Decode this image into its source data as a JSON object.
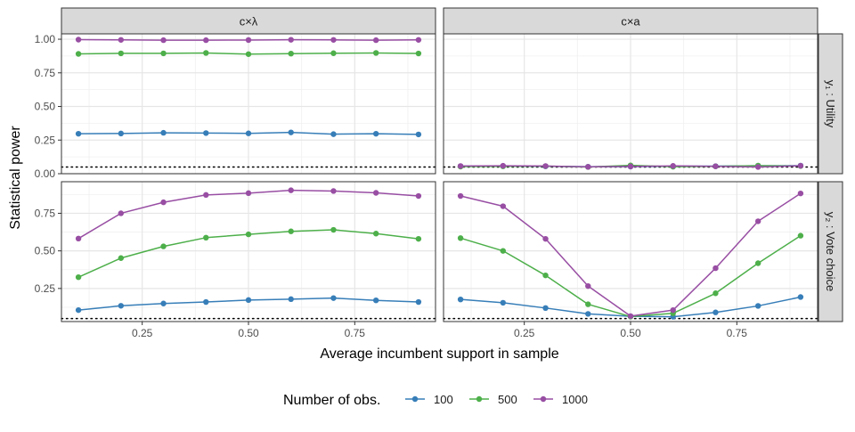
{
  "chart_data": {
    "type": "line",
    "xlabel": "Average incumbent support in sample",
    "ylabel": "Statistical power",
    "xlim": [
      0.06,
      0.94
    ],
    "x_ticks": [
      0.25,
      0.5,
      0.75
    ],
    "x_tick_labels": [
      "0.25",
      "0.50",
      "0.75"
    ],
    "x": [
      0.1,
      0.2,
      0.3,
      0.4,
      0.5,
      0.6,
      0.7,
      0.8,
      0.9
    ],
    "reference_line": 0.05,
    "legend_position": "bottom",
    "legend_title": "Number of obs.",
    "colors": {
      "100": "#377EB8",
      "500": "#4DAF4A",
      "1000": "#984EA3"
    },
    "columns": [
      "c×λ",
      "c×a"
    ],
    "rows": [
      {
        "label": "y₁ : Utility",
        "ylim": [
          0.0,
          1.04
        ],
        "y_ticks": [
          0.0,
          0.25,
          0.5,
          0.75,
          1.0
        ],
        "y_tick_labels": [
          "0.00",
          "0.25",
          "0.50",
          "0.75",
          "1.00"
        ]
      },
      {
        "label": "y₂ : Vote choice",
        "ylim": [
          0.03,
          0.96
        ],
        "y_ticks": [
          0.25,
          0.5,
          0.75
        ],
        "y_tick_labels": [
          "0.25",
          "0.50",
          "0.75"
        ]
      }
    ],
    "panels": [
      {
        "row": 0,
        "col": 0,
        "series": [
          {
            "name": "100",
            "values": [
              0.297,
              0.299,
              0.304,
              0.302,
              0.3,
              0.307,
              0.294,
              0.297,
              0.292
            ]
          },
          {
            "name": "500",
            "values": [
              0.891,
              0.895,
              0.895,
              0.898,
              0.889,
              0.893,
              0.896,
              0.898,
              0.894
            ]
          },
          {
            "name": "1000",
            "values": [
              0.997,
              0.995,
              0.993,
              0.993,
              0.994,
              0.996,
              0.995,
              0.993,
              0.995
            ]
          }
        ]
      },
      {
        "row": 0,
        "col": 1,
        "series": [
          {
            "name": "100",
            "values": [
              0.056,
              0.057,
              0.055,
              0.052,
              0.053,
              0.055,
              0.056,
              0.059,
              0.06
            ]
          },
          {
            "name": "500",
            "values": [
              0.053,
              0.055,
              0.056,
              0.05,
              0.062,
              0.052,
              0.055,
              0.06,
              0.057
            ]
          },
          {
            "name": "1000",
            "values": [
              0.057,
              0.059,
              0.057,
              0.051,
              0.054,
              0.058,
              0.055,
              0.05,
              0.059
            ]
          }
        ]
      },
      {
        "row": 1,
        "col": 0,
        "series": [
          {
            "name": "100",
            "values": [
              0.106,
              0.135,
              0.15,
              0.16,
              0.173,
              0.179,
              0.186,
              0.171,
              0.16
            ]
          },
          {
            "name": "500",
            "values": [
              0.325,
              0.452,
              0.53,
              0.588,
              0.61,
              0.63,
              0.64,
              0.615,
              0.58
            ]
          },
          {
            "name": "1000",
            "values": [
              0.582,
              0.75,
              0.823,
              0.872,
              0.884,
              0.903,
              0.898,
              0.886,
              0.865
            ]
          }
        ]
      },
      {
        "row": 1,
        "col": 1,
        "series": [
          {
            "name": "100",
            "values": [
              0.177,
              0.155,
              0.12,
              0.081,
              0.065,
              0.062,
              0.091,
              0.134,
              0.193
            ]
          },
          {
            "name": "500",
            "values": [
              0.585,
              0.5,
              0.337,
              0.145,
              0.063,
              0.085,
              0.218,
              0.418,
              0.601
            ]
          },
          {
            "name": "1000",
            "values": [
              0.865,
              0.797,
              0.58,
              0.266,
              0.066,
              0.106,
              0.385,
              0.697,
              0.882
            ]
          }
        ]
      }
    ],
    "legend": [
      {
        "name": "100",
        "label": "100"
      },
      {
        "name": "500",
        "label": "500"
      },
      {
        "name": "1000",
        "label": "1000"
      }
    ]
  }
}
